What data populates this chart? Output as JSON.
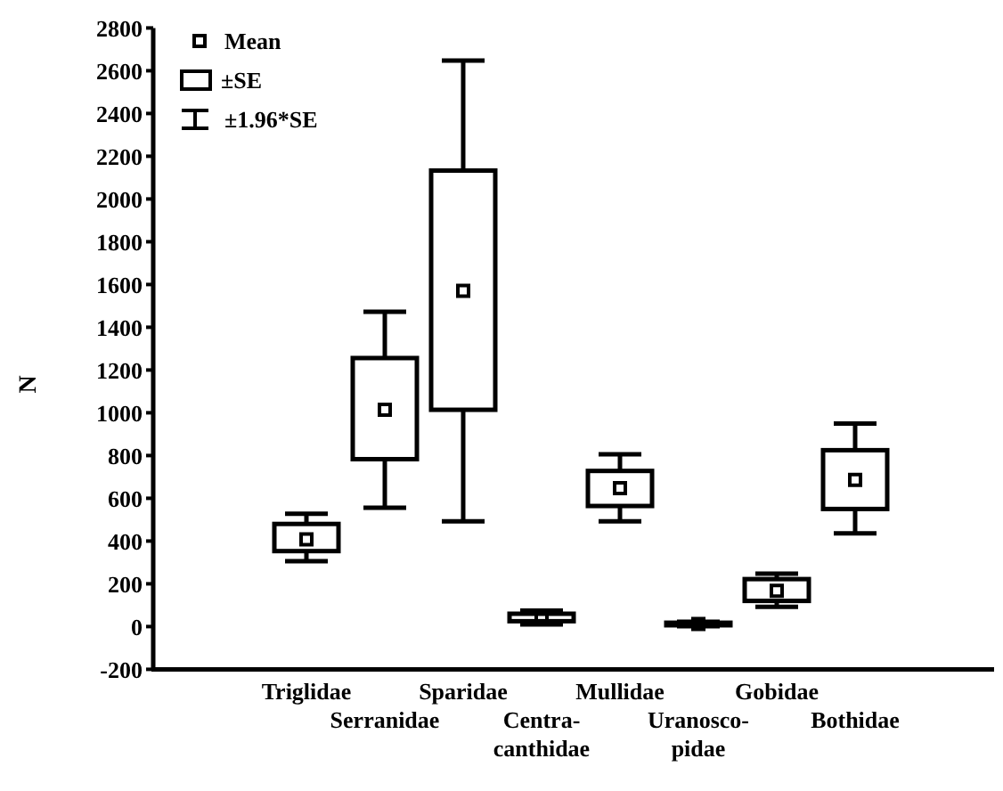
{
  "chart_data": {
    "type": "box",
    "ylabel": "N",
    "categories": [
      "Triglidae",
      "Serranidae",
      "Sparidae",
      "Centra-\ncanthidae",
      "Mullidae",
      "Uranosco-\npidae",
      "Gobidae",
      "Bothidae"
    ],
    "boxes": [
      {
        "low": 306,
        "q1": 353,
        "mean": 408,
        "q3": 480,
        "high": 528
      },
      {
        "low": 556,
        "q1": 783,
        "mean": 1014,
        "q3": 1256,
        "high": 1472
      },
      {
        "low": 492,
        "q1": 1014,
        "mean": 1570,
        "q3": 2133,
        "high": 2647
      },
      {
        "low": 10,
        "q1": 25,
        "mean": 42,
        "q3": 60,
        "high": 75
      },
      {
        "low": 492,
        "q1": 564,
        "mean": 648,
        "q3": 728,
        "high": 806
      },
      {
        "low": 2,
        "q1": 6,
        "mean": 12,
        "q3": 18,
        "high": 22
      },
      {
        "low": 92,
        "q1": 120,
        "mean": 167,
        "q3": 222,
        "high": 248
      },
      {
        "low": 436,
        "q1": 550,
        "mean": 686,
        "q3": 825,
        "high": 950
      }
    ],
    "color": "#000000",
    "ylim": [
      -200,
      2800
    ],
    "yticks": [
      -200,
      0,
      200,
      400,
      600,
      800,
      1000,
      1200,
      1400,
      1600,
      1800,
      2000,
      2200,
      2400,
      2600,
      2800
    ],
    "annotations": [
      "Mean",
      "±SE",
      "±1.96*SE"
    ]
  }
}
